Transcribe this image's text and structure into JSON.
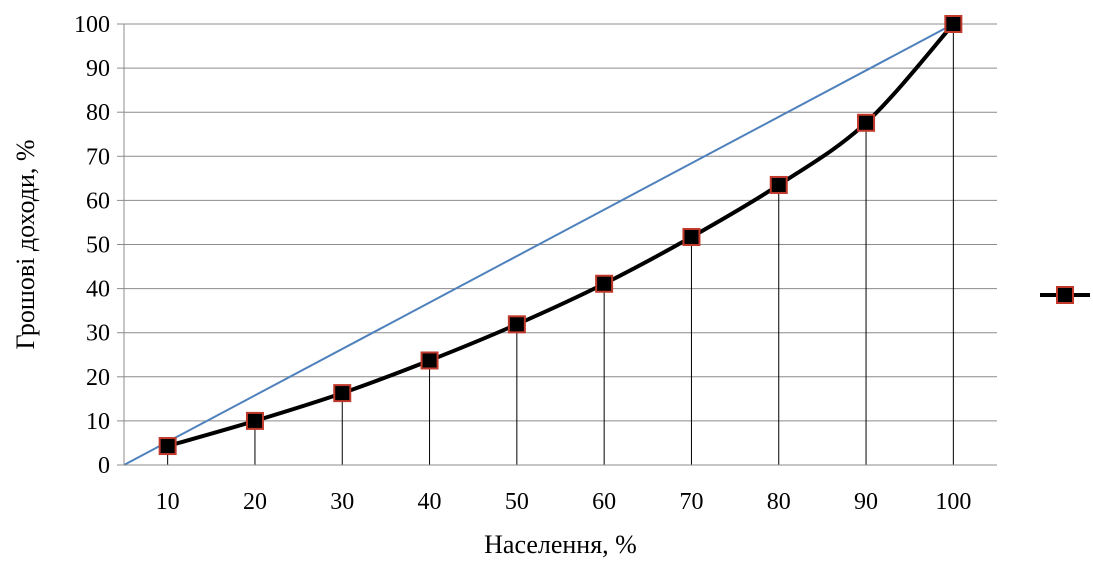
{
  "chart_data": {
    "type": "line",
    "xlabel": "Населення, %",
    "ylabel": "Грошові доходи, %",
    "categories": [
      "10",
      "20",
      "30",
      "40",
      "50",
      "60",
      "70",
      "80",
      "90",
      "100"
    ],
    "ylim": [
      0,
      100
    ],
    "yticks": [
      0,
      10,
      20,
      30,
      40,
      50,
      60,
      70,
      80,
      90,
      100
    ],
    "grid": true,
    "legend": "right",
    "series": [
      {
        "values": [
          4.3,
          10.0,
          16.3,
          23.7,
          31.9,
          41.1,
          51.7,
          63.5,
          77.6,
          100
        ],
        "color": "#000000",
        "marker": "square",
        "marker_fill": "#000000",
        "marker_edge": "#c0392b",
        "drop_lines": true
      }
    ],
    "reference_line": {
      "x": [
        5,
        100
      ],
      "y": [
        0,
        100
      ],
      "color": "#4f81bd"
    }
  }
}
